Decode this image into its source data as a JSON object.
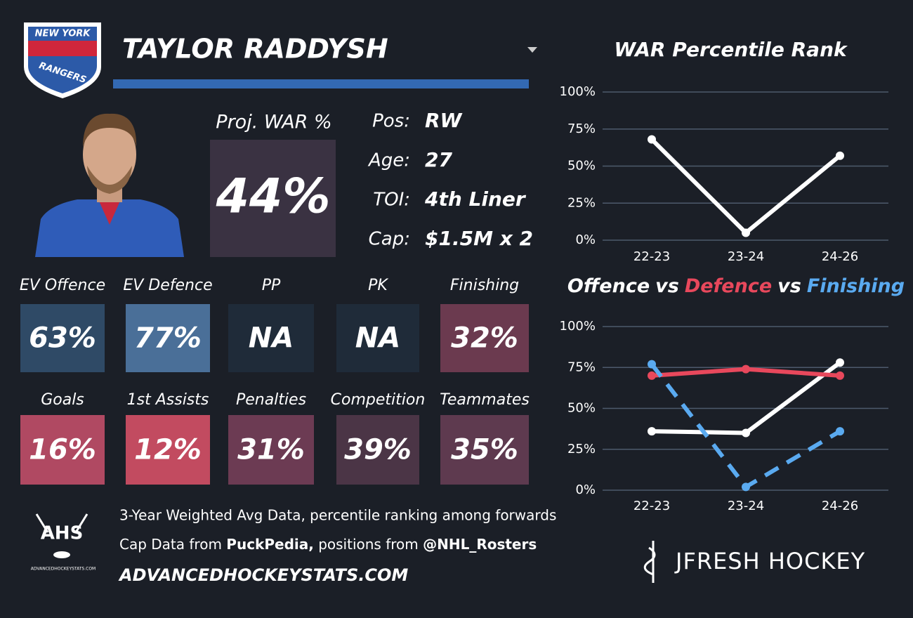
{
  "header": {
    "team_line1": "NEW YORK",
    "team_line2": "RANGERS",
    "player_name": "TAYLOR RADDYSH"
  },
  "proj_war": {
    "label": "Proj. WAR %",
    "value": "44%",
    "color": "#3a3242"
  },
  "info": [
    {
      "label": "Pos:",
      "value": "RW"
    },
    {
      "label": "Age:",
      "value": "27"
    },
    {
      "label": "TOI:",
      "value": "4th Liner"
    },
    {
      "label": "Cap:",
      "value": "$1.5M x 2"
    }
  ],
  "tiles": [
    {
      "label": "EV Offence",
      "value": "63%",
      "color": "#2f4a66"
    },
    {
      "label": "EV Defence",
      "value": "77%",
      "color": "#4a6f98"
    },
    {
      "label": "PP",
      "value": "NA",
      "color": "#1f2b39"
    },
    {
      "label": "PK",
      "value": "NA",
      "color": "#1f2b39"
    },
    {
      "label": "Finishing",
      "value": "32%",
      "color": "#6b3a4f"
    },
    {
      "label": "Goals",
      "value": "16%",
      "color": "#b04962"
    },
    {
      "label": "1st Assists",
      "value": "12%",
      "color": "#c24b60"
    },
    {
      "label": "Penalties",
      "value": "31%",
      "color": "#6c3b53"
    },
    {
      "label": "Competition",
      "value": "39%",
      "color": "#4b3546"
    },
    {
      "label": "Teammates",
      "value": "35%",
      "color": "#5e3a4f"
    }
  ],
  "footer": {
    "logo_text": "AHS",
    "logo_subtext": "ADVANCEDHOCKEYSTATS.COM",
    "line1": "3-Year Weighted Avg Data, percentile ranking among forwards",
    "line2": [
      {
        "text": "Cap Data from ",
        "bold": false
      },
      {
        "text": "PuckPedia,",
        "bold": true
      },
      {
        "text": " positions from ",
        "bold": false
      },
      {
        "text": "@NHL_Rosters",
        "bold": true
      }
    ],
    "line3": "ADVANCEDHOCKEYSTATS.COM",
    "brand": "JFRESH HOCKEY"
  },
  "chart_data": [
    {
      "type": "line",
      "title": "WAR Percentile Rank",
      "categories": [
        "22-23",
        "23-24",
        "24-26"
      ],
      "values": [
        68,
        5,
        57
      ],
      "color": "#ffffff",
      "ylim": [
        0,
        100
      ],
      "yticks": [
        {
          "value": 0,
          "label": "0%"
        },
        {
          "value": 25,
          "label": "25%"
        },
        {
          "value": 50,
          "label": "50%"
        },
        {
          "value": 75,
          "label": "75%"
        },
        {
          "value": 100,
          "label": "100%"
        }
      ],
      "grid": true
    },
    {
      "type": "line",
      "title_joiner": "vs",
      "categories": [
        "22-23",
        "23-24",
        "24-26"
      ],
      "series": [
        {
          "name": "Offence",
          "color": "#ffffff",
          "values": [
            36,
            35,
            78
          ],
          "dashed": false
        },
        {
          "name": "Defence",
          "color": "#e8485c",
          "values": [
            70,
            74,
            70
          ],
          "dashed": false
        },
        {
          "name": "Finishing",
          "color": "#5aaaf0",
          "values": [
            77,
            2,
            36
          ],
          "dashed": true
        }
      ],
      "ylim": [
        0,
        100
      ],
      "yticks": [
        {
          "value": 0,
          "label": "0%"
        },
        {
          "value": 25,
          "label": "25%"
        },
        {
          "value": 50,
          "label": "50%"
        },
        {
          "value": 75,
          "label": "75%"
        },
        {
          "value": 100,
          "label": "100%"
        }
      ],
      "grid": true
    }
  ]
}
